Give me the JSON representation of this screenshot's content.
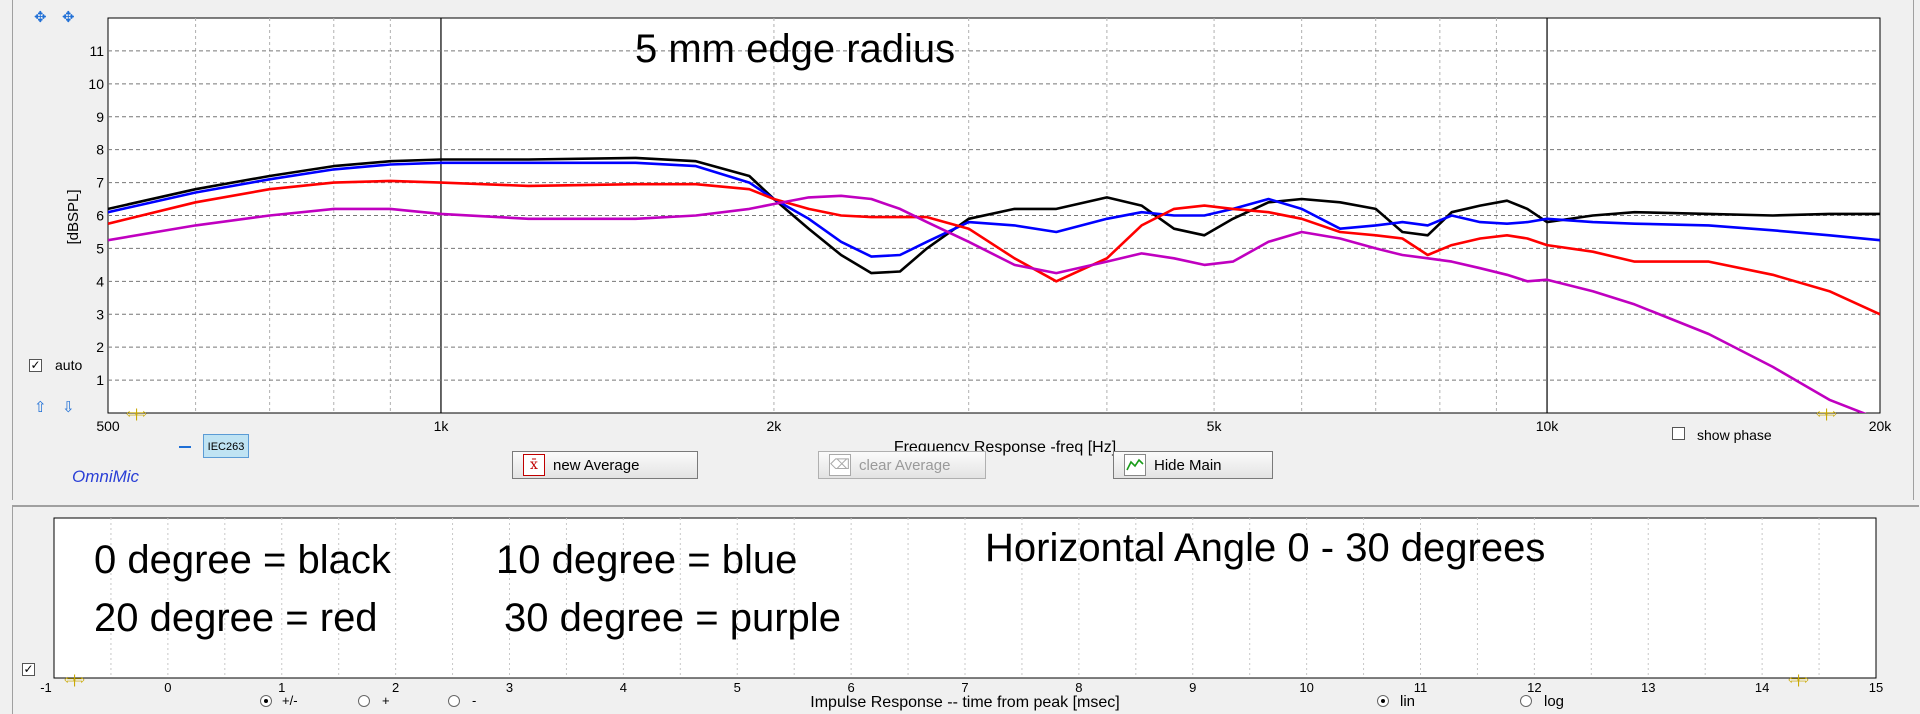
{
  "chart_data": {
    "type": "line",
    "title": "5 mm edge radius",
    "xlabel": "Frequency Response -freq [Hz]",
    "ylabel": "[dBSPL]",
    "xscale": "log",
    "xlim": [
      500,
      20000
    ],
    "ylim": [
      0,
      12
    ],
    "grid": true,
    "y_ticks": [
      1,
      2,
      3,
      4,
      5,
      6,
      7,
      8,
      9,
      10,
      11
    ],
    "x_tick_labels": [
      {
        "value": 500,
        "label": "500"
      },
      {
        "value": 1000,
        "label": "1k"
      },
      {
        "value": 2000,
        "label": "2k"
      },
      {
        "value": 5000,
        "label": "5k"
      },
      {
        "value": 10000,
        "label": "10k"
      },
      {
        "value": 20000,
        "label": "20k"
      }
    ],
    "series": [
      {
        "color": "#000000",
        "x": [
          500,
          600,
          700,
          800,
          900,
          1000,
          1200,
          1500,
          1700,
          1900,
          2000,
          2150,
          2300,
          2450,
          2600,
          2750,
          3000,
          3300,
          3600,
          4000,
          4300,
          4600,
          4900,
          5200,
          5600,
          6000,
          6500,
          7000,
          7400,
          7800,
          8200,
          8700,
          9200,
          9600,
          10000,
          11000,
          12000,
          14000,
          16000,
          18000,
          20000
        ],
        "y": [
          6.2,
          6.8,
          7.2,
          7.5,
          7.65,
          7.7,
          7.7,
          7.75,
          7.65,
          7.2,
          6.5,
          5.6,
          4.8,
          4.25,
          4.3,
          5.0,
          5.9,
          6.2,
          6.2,
          6.55,
          6.3,
          5.6,
          5.4,
          5.9,
          6.4,
          6.5,
          6.4,
          6.2,
          5.5,
          5.4,
          6.1,
          6.3,
          6.45,
          6.2,
          5.8,
          6.0,
          6.1,
          6.05,
          6.0,
          6.05,
          6.05
        ]
      },
      {
        "color": "#0000ff",
        "x": [
          500,
          600,
          700,
          800,
          900,
          1000,
          1200,
          1500,
          1700,
          1900,
          2000,
          2150,
          2300,
          2450,
          2600,
          2750,
          3000,
          3300,
          3600,
          4000,
          4300,
          4600,
          4900,
          5200,
          5600,
          6000,
          6500,
          7000,
          7400,
          7800,
          8200,
          8700,
          9200,
          9600,
          10000,
          11000,
          12000,
          14000,
          16000,
          18000,
          20000
        ],
        "y": [
          6.1,
          6.7,
          7.1,
          7.4,
          7.55,
          7.6,
          7.6,
          7.6,
          7.5,
          7.0,
          6.5,
          5.9,
          5.2,
          4.75,
          4.8,
          5.2,
          5.8,
          5.7,
          5.5,
          5.9,
          6.1,
          6.0,
          6.0,
          6.2,
          6.5,
          6.2,
          5.6,
          5.7,
          5.8,
          5.7,
          6.0,
          5.8,
          5.75,
          5.8,
          5.9,
          5.8,
          5.75,
          5.7,
          5.55,
          5.4,
          5.25
        ]
      },
      {
        "color": "#ff0000",
        "x": [
          500,
          600,
          700,
          800,
          900,
          1000,
          1200,
          1500,
          1700,
          1900,
          2000,
          2150,
          2300,
          2450,
          2600,
          2750,
          3000,
          3300,
          3600,
          4000,
          4300,
          4600,
          4900,
          5200,
          5600,
          6000,
          6500,
          7000,
          7400,
          7800,
          8200,
          8700,
          9200,
          9600,
          10000,
          11000,
          12000,
          14000,
          16000,
          18000,
          20000
        ],
        "y": [
          5.75,
          6.4,
          6.8,
          7.0,
          7.05,
          7.0,
          6.9,
          6.95,
          6.95,
          6.8,
          6.5,
          6.2,
          6.0,
          5.95,
          5.95,
          5.95,
          5.6,
          4.7,
          4.0,
          4.7,
          5.7,
          6.2,
          6.3,
          6.2,
          6.1,
          5.9,
          5.5,
          5.4,
          5.3,
          4.8,
          5.1,
          5.3,
          5.4,
          5.3,
          5.1,
          4.9,
          4.6,
          4.6,
          4.2,
          3.7,
          3.0
        ]
      },
      {
        "color": "#c000c0",
        "x": [
          500,
          600,
          700,
          800,
          900,
          1000,
          1200,
          1500,
          1700,
          1900,
          2000,
          2150,
          2300,
          2450,
          2600,
          2750,
          3000,
          3300,
          3600,
          4000,
          4300,
          4600,
          4900,
          5200,
          5600,
          6000,
          6500,
          7000,
          7400,
          7800,
          8200,
          8700,
          9200,
          9600,
          10000,
          11000,
          12000,
          14000,
          16000,
          18000,
          20000
        ],
        "y": [
          5.25,
          5.7,
          6.0,
          6.2,
          6.2,
          6.05,
          5.9,
          5.9,
          6.0,
          6.2,
          6.35,
          6.55,
          6.6,
          6.5,
          6.2,
          5.8,
          5.2,
          4.5,
          4.25,
          4.6,
          4.85,
          4.7,
          4.5,
          4.6,
          5.2,
          5.5,
          5.3,
          5.0,
          4.8,
          4.7,
          4.6,
          4.4,
          4.2,
          4.0,
          4.05,
          3.7,
          3.3,
          2.4,
          1.4,
          0.4,
          -0.2
        ]
      }
    ]
  },
  "impulse_chart": {
    "xlabel": "Impulse Response  -- time from peak [msec]",
    "x_ticks": [
      "-1",
      "0",
      "1",
      "2",
      "3",
      "4",
      "5",
      "6",
      "7",
      "8",
      "9",
      "10",
      "11",
      "12",
      "13",
      "14",
      "15"
    ],
    "xlim": [
      -1,
      15
    ],
    "legend_lines": [
      "0 degree = black",
      "20 degree = red"
    ],
    "legend_lines_right": [
      "10 degree = blue",
      "30 degree = purple"
    ],
    "heading": "Horizontal Angle 0 - 30 degrees"
  },
  "controls": {
    "auto_label": "auto",
    "auto_checked": true,
    "show_phase_label": "show phase",
    "show_phase_checked": false,
    "mic_tag": "IEC263",
    "brand": "OmniMic",
    "new_average": "new Average",
    "clear_average": "clear Average",
    "hide_main": "Hide Main",
    "radio_polarity": [
      "+/-",
      "+",
      "-"
    ],
    "radio_polarity_selected": "+/-",
    "radio_scale": [
      "lin",
      "log"
    ],
    "radio_scale_selected": "lin"
  }
}
